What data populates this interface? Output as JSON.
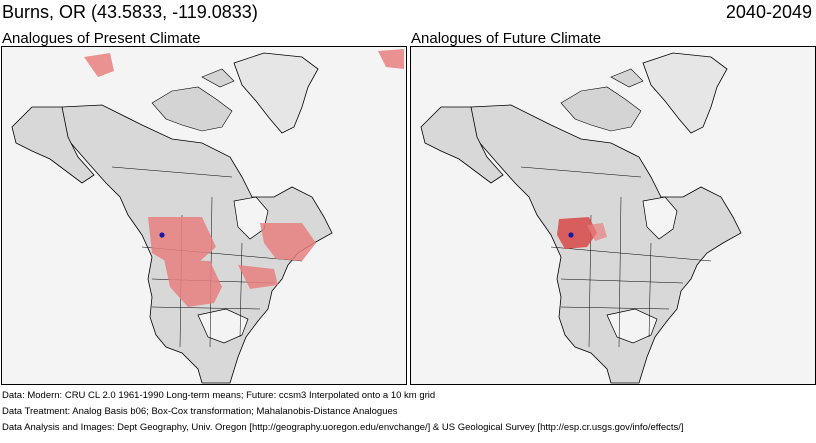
{
  "header": {
    "location": "Burns, OR  (43.5833, -119.0833)",
    "period": "2040-2049"
  },
  "panels": [
    {
      "label": "Analogues of Present Climate"
    },
    {
      "label": "Analogues of Future Climate"
    }
  ],
  "colors": {
    "analogue_fill": "#e88080",
    "analogue_strong": "#d85050",
    "site_marker": "#1a1aa0",
    "land": "#d8d8d8",
    "water": "#f4f4f4"
  },
  "footer": {
    "line1": "Data:  Modern: CRU CL 2.0 1961-1990 Long-term means; Future: ccsm3 Interpolated onto a 10 km grid",
    "line2": "Data Treatment:  Analog Basis b06; Box-Cox transformation; Mahalanobis-Distance Analogues",
    "line3": "Data Analysis and Images:  Dept Geography, Univ. Oregon [http://geography.uoregon.edu/envchange/] & US Geological Survey [http://esp.cr.usgs.gov/info/effects/]"
  }
}
